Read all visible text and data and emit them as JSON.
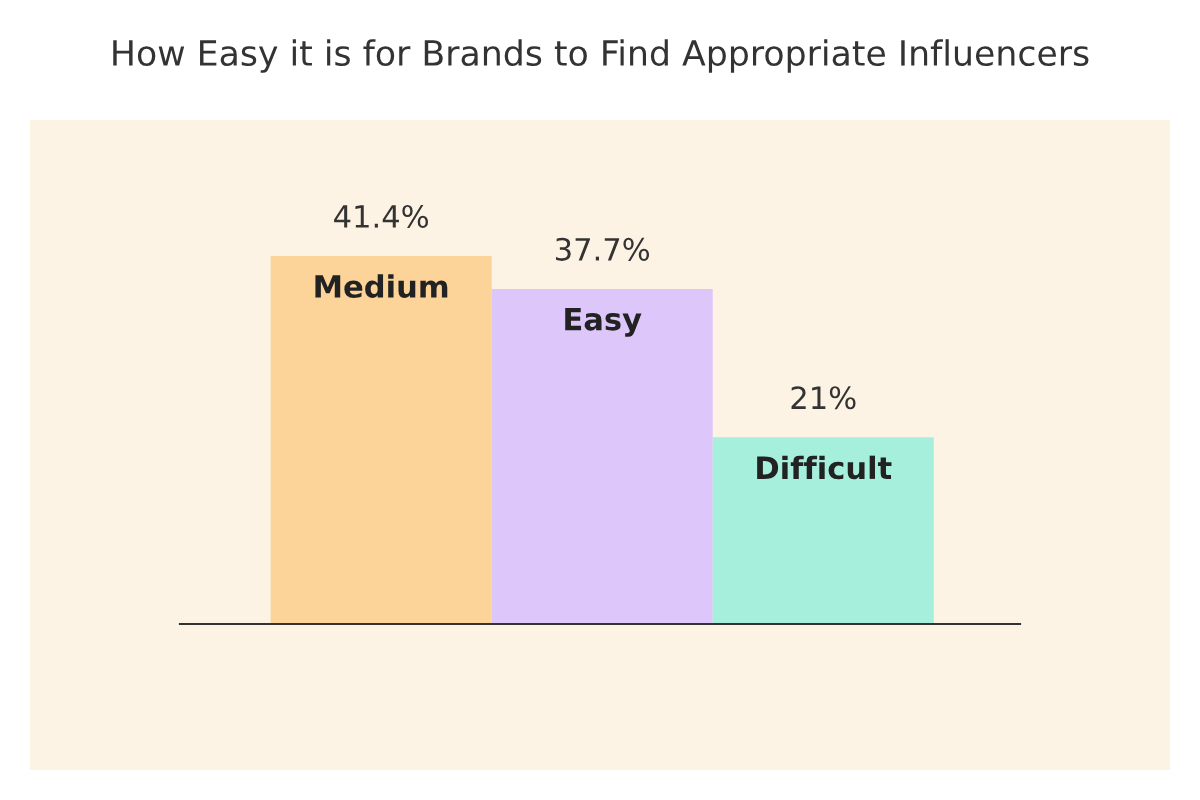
{
  "chart_data": {
    "type": "bar",
    "title": "How Easy it is for Brands to Find Appropriate Influencers",
    "categories": [
      "Medium",
      "Easy",
      "Difficult"
    ],
    "values": [
      41.4,
      37.7,
      21
    ],
    "colors": [
      "#fcd398",
      "#dcc6fa",
      "#a6efdd"
    ],
    "value_labels": [
      "41.4%",
      "37.7%",
      "21%"
    ],
    "legend": false,
    "tick_labels": false
  }
}
